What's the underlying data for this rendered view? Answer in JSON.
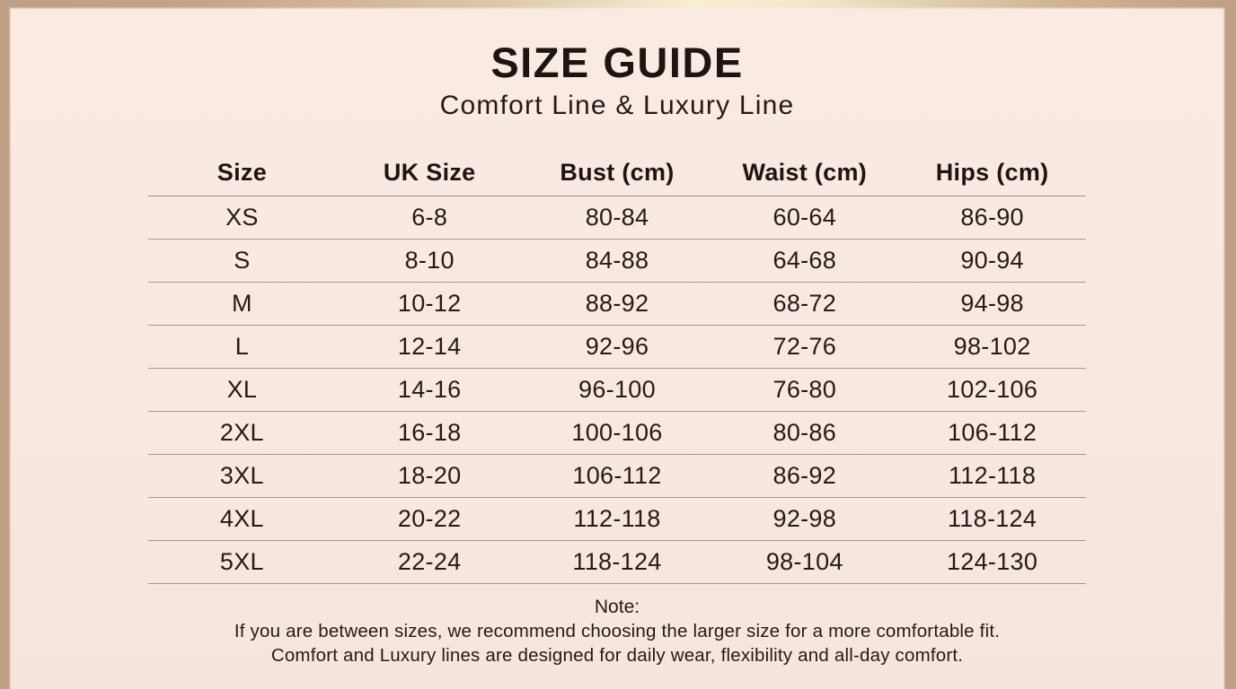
{
  "header": {
    "title": "SIZE GUIDE",
    "subtitle": "Comfort Line & Luxury Line"
  },
  "table": {
    "columns": [
      "Size",
      "UK Size",
      "Bust (cm)",
      "Waist (cm)",
      "Hips (cm)"
    ],
    "rows": [
      [
        "XS",
        "6-8",
        "80-84",
        "60-64",
        "86-90"
      ],
      [
        "S",
        "8-10",
        "84-88",
        "64-68",
        "90-94"
      ],
      [
        "M",
        "10-12",
        "88-92",
        "68-72",
        "94-98"
      ],
      [
        "L",
        "12-14",
        "92-96",
        "72-76",
        "98-102"
      ],
      [
        "XL",
        "14-16",
        "96-100",
        "76-80",
        "102-106"
      ],
      [
        "2XL",
        "16-18",
        "100-106",
        "80-86",
        "106-112"
      ],
      [
        "3XL",
        "18-20",
        "106-112",
        "86-92",
        "112-118"
      ],
      [
        "4XL",
        "20-22",
        "112-118",
        "92-98",
        "118-124"
      ],
      [
        "5XL",
        "22-24",
        "118-124",
        "98-104",
        "124-130"
      ]
    ]
  },
  "note": {
    "label": "Note:",
    "lines": [
      "If you are between sizes, we recommend choosing the larger size for a more comfortable fit.",
      "Comfort and Luxury lines are designed for daily wear, flexibility and all-day comfort."
    ]
  },
  "colors": {
    "background_pink": "#f8e8e1",
    "frame_tan": "#bf9f85",
    "frame_champagne_highlight": "#f7eed6",
    "text_dark": "#1d1510",
    "divider_gray": "#a39a94"
  }
}
